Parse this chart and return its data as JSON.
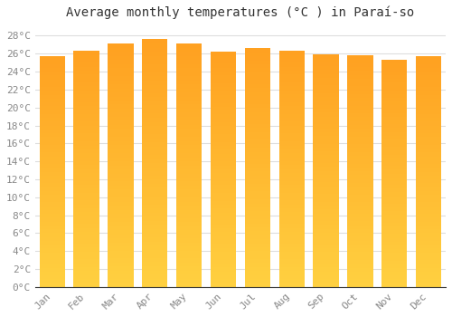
{
  "title": "Average monthly temperatures (°C ) in Paraí-so",
  "months": [
    "Jan",
    "Feb",
    "Mar",
    "Apr",
    "May",
    "Jun",
    "Jul",
    "Aug",
    "Sep",
    "Oct",
    "Nov",
    "Dec"
  ],
  "temperatures": [
    25.7,
    26.3,
    27.1,
    27.6,
    27.1,
    26.2,
    26.6,
    26.3,
    25.9,
    25.8,
    25.3,
    25.7
  ],
  "bar_color_bottom": "#FFD040",
  "bar_color_top": "#FFA020",
  "ylim": [
    0,
    29
  ],
  "ytick_step": 2,
  "background_color": "#ffffff",
  "plot_bg_color": "#ffffff",
  "grid_color": "#dddddd",
  "title_fontsize": 10,
  "tick_fontsize": 8,
  "font_family": "monospace",
  "title_color": "#333333",
  "tick_color": "#888888",
  "bar_width": 0.75
}
